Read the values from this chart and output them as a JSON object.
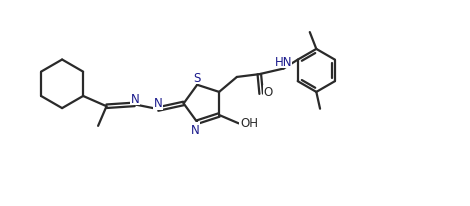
{
  "bg_color": "#ffffff",
  "line_color": "#2a2a2a",
  "text_color": "#1a1a8c",
  "oh_color": "#2a2a2a",
  "bond_lw": 1.6,
  "font_size": 8.5,
  "xlim": [
    0,
    10
  ],
  "ylim": [
    0,
    4.4
  ]
}
